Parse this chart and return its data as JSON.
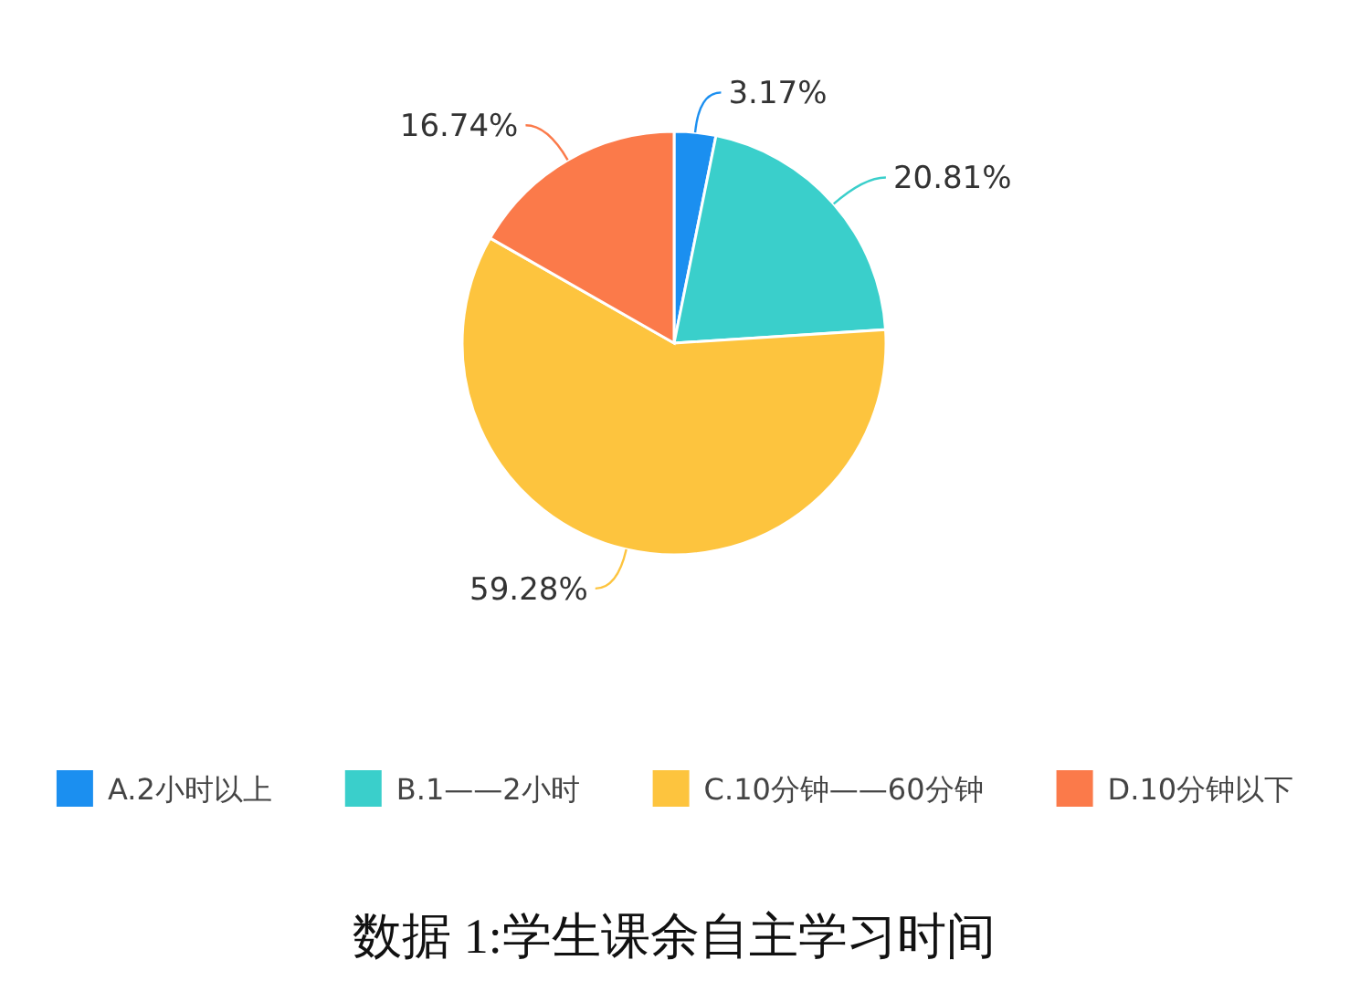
{
  "chart_data": {
    "type": "pie",
    "title": "数据 1:学生课余自主学习时间",
    "categories": [
      "A.2小时以上",
      "B.1——2小时",
      "C.10分钟——60分钟",
      "D.10分钟以下"
    ],
    "values": [
      3.17,
      20.81,
      59.28,
      16.74
    ],
    "colors": [
      "#1b8ff0",
      "#3acfcb",
      "#fdc43e",
      "#fb7a4a"
    ],
    "value_labels": [
      "3.17%",
      "20.81%",
      "59.28%",
      "16.74%"
    ],
    "legend": "bottom"
  }
}
